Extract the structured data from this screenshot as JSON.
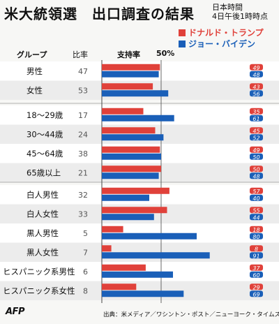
{
  "header": {
    "title": "米大統領選　出口調査の結果",
    "timestamp_line1": "日本時間",
    "timestamp_line2": "4日午後1時時点"
  },
  "legend": {
    "trump": "ドナルド・トランプ",
    "biden": "ジョー・バイデン"
  },
  "columns": {
    "group": "グループ",
    "ratio": "比率",
    "support": "支持率",
    "fifty": "50%"
  },
  "footer": {
    "source": "出典：米メディア／ワシントン・ポスト／ニューヨーク・タイムズ",
    "logo": "AFP"
  },
  "colors": {
    "trump": "#e0413a",
    "biden": "#1a5fb8",
    "grid": "#444444",
    "background": "#f7f7f5",
    "band_light": "#ffffff",
    "band_dark": "#ececec"
  },
  "chart_data": {
    "type": "bar",
    "orientation": "horizontal",
    "xlim": [
      0,
      100
    ],
    "reference_line": 50,
    "series": [
      {
        "name": "ドナルド・トランプ",
        "key": "trump"
      },
      {
        "name": "ジョー・バイデン",
        "key": "biden"
      }
    ],
    "groups": [
      {
        "label": "男性",
        "ratio": "47",
        "trump": 49,
        "biden": 48,
        "section": 0
      },
      {
        "label": "女性",
        "ratio": "53",
        "trump": 43,
        "biden": 56,
        "section": 0
      },
      {
        "label": "18〜29歳",
        "ratio": "17",
        "trump": 35,
        "biden": 61,
        "section": 1
      },
      {
        "label": "30〜44歳",
        "ratio": "24",
        "trump": 45,
        "biden": 52,
        "section": 1
      },
      {
        "label": "45〜64歳",
        "ratio": "38",
        "trump": 49,
        "biden": 50,
        "section": 1
      },
      {
        "label": "65歳以上",
        "ratio": "21",
        "trump": 50,
        "biden": 48,
        "section": 1
      },
      {
        "label": "白人男性",
        "ratio": "32",
        "trump": 57,
        "biden": 40,
        "section": 2
      },
      {
        "label": "白人女性",
        "ratio": "33",
        "trump": 55,
        "biden": 44,
        "section": 2
      },
      {
        "label": "黒人男性",
        "ratio": "5",
        "trump": 18,
        "biden": 80,
        "section": 2
      },
      {
        "label": "黒人女性",
        "ratio": "7",
        "trump": 8,
        "biden": 91,
        "section": 2
      },
      {
        "label": "ヒスパニック系男性",
        "ratio": "6",
        "trump": 37,
        "biden": 60,
        "section": 2
      },
      {
        "label": "ヒスパニック系女性",
        "ratio": "8",
        "trump": 29,
        "biden": 69,
        "section": 2
      }
    ]
  }
}
